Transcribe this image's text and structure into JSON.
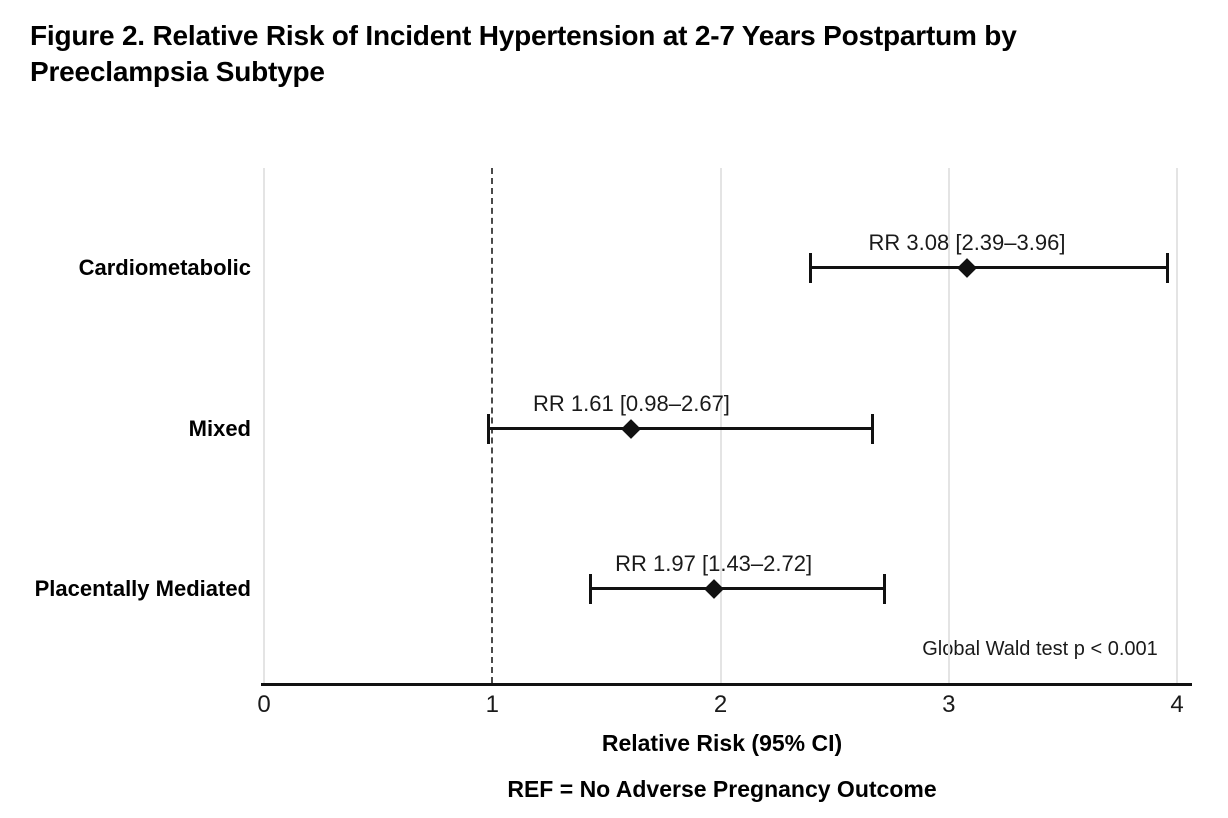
{
  "figure": {
    "title_lines": [
      "Figure 2. Relative Risk of Incident Hypertension at 2-7 Years Postpartum by",
      "Preeclampsia Subtype"
    ]
  },
  "colors": {
    "text": "#000000",
    "marker": "#111111",
    "grid": "#e4e4e4",
    "reference_line": "#4a4a4a",
    "axis_line": "#111111",
    "background": "#ffffff"
  },
  "chart_data": {
    "type": "scatter",
    "variant": "forest-plot",
    "title": "Figure 2. Relative Risk of Incident Hypertension at 2-7 Years Postpartum by Preeclampsia Subtype",
    "xlabel": "Relative Risk (95% CI)",
    "xlim": [
      0,
      4
    ],
    "xticks": [
      0,
      1,
      2,
      3,
      4
    ],
    "grid": "light vertical gridlines at 0, 2, 3, 4",
    "gridline_values": [
      0,
      2,
      3,
      4
    ],
    "reference_line_x": 1,
    "legend_position": "none",
    "categories": [
      "Cardiometabolic",
      "Mixed",
      "Placentally Mediated"
    ],
    "series": [
      {
        "name": "Cardiometabolic",
        "rr": 3.08,
        "ci_low": 2.39,
        "ci_high": 3.96,
        "label": "RR 3.08 [2.39–3.96]"
      },
      {
        "name": "Mixed",
        "rr": 1.61,
        "ci_low": 0.98,
        "ci_high": 2.67,
        "label": "RR 1.61 [0.98–2.67]"
      },
      {
        "name": "Placentally Mediated",
        "rr": 1.97,
        "ci_low": 1.43,
        "ci_high": 2.72,
        "label": "RR 1.97 [1.43–2.72]"
      }
    ],
    "note": "Global Wald test p < 0.001",
    "footnote": "REF = No Adverse Pregnancy Outcome"
  }
}
